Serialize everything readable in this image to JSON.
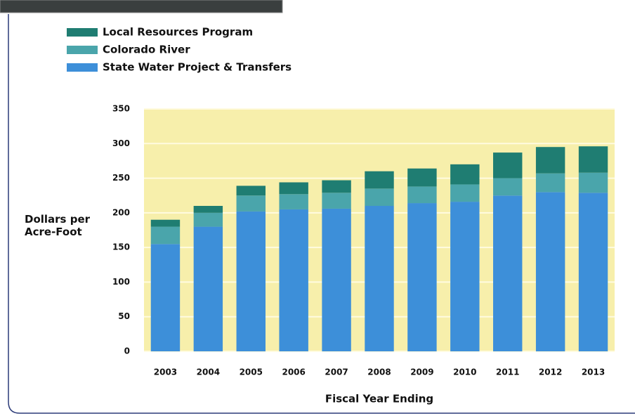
{
  "chart_data": {
    "type": "stacked_bar",
    "y_label": "Dollars per Acre-Foot",
    "x_label": "Fiscal Year Ending",
    "categories": [
      "2003",
      "2004",
      "2005",
      "2006",
      "2007",
      "2008",
      "2009",
      "2010",
      "2011",
      "2012",
      "2013"
    ],
    "series": [
      {
        "name": "State Water Project & Transfers",
        "color": "#3d8fd9",
        "values": [
          155,
          180,
          202,
          205,
          206,
          210,
          214,
          216,
          225,
          230,
          229
        ]
      },
      {
        "name": "Colorado River",
        "color": "#4aa5ab",
        "values": [
          25,
          20,
          23,
          22,
          23,
          25,
          24,
          25,
          25,
          27,
          29
        ]
      },
      {
        "name": "Local Resources Program",
        "color": "#1f7d72",
        "values": [
          10,
          10,
          14,
          17,
          18,
          25,
          26,
          29,
          37,
          38,
          38
        ]
      }
    ],
    "ylim": [
      0,
      350
    ],
    "yticks": [
      0,
      50,
      100,
      150,
      200,
      250,
      300,
      350
    ],
    "grid": true
  }
}
